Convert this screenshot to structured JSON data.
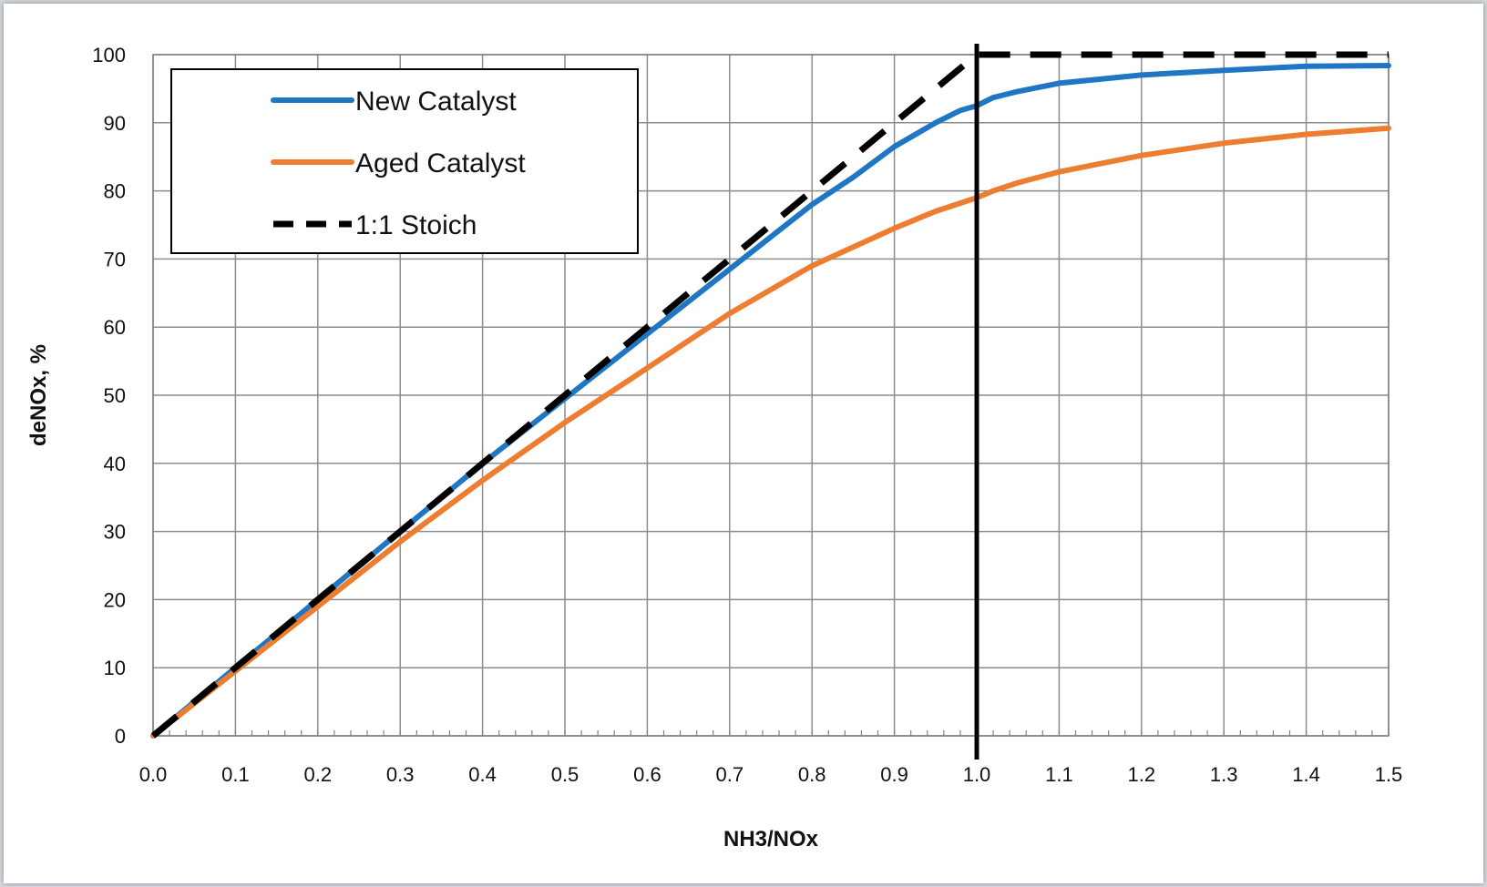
{
  "chart_data": {
    "type": "line",
    "xlabel": "NH3/NOx",
    "ylabel": "deNOx, %",
    "xlim": [
      0,
      1.5
    ],
    "ylim": [
      0,
      100
    ],
    "x_ticks": [
      "0.0",
      "0.1",
      "0.2",
      "0.3",
      "0.4",
      "0.5",
      "0.6",
      "0.7",
      "0.8",
      "0.9",
      "1.0",
      "1.1",
      "1.2",
      "1.3",
      "1.4",
      "1.5"
    ],
    "y_ticks": [
      "0",
      "10",
      "20",
      "30",
      "40",
      "50",
      "60",
      "70",
      "80",
      "90",
      "100"
    ],
    "grid": true,
    "legend_position": "top-left",
    "reference_line_x": 1.0,
    "series": [
      {
        "name": "New Catalyst",
        "color": "#1f77c4",
        "style": "solid",
        "points": [
          [
            0,
            0
          ],
          [
            0.1,
            10
          ],
          [
            0.2,
            20
          ],
          [
            0.3,
            30
          ],
          [
            0.4,
            40
          ],
          [
            0.5,
            49.5
          ],
          [
            0.6,
            59
          ],
          [
            0.7,
            68.5
          ],
          [
            0.8,
            78
          ],
          [
            0.85,
            82
          ],
          [
            0.9,
            86.5
          ],
          [
            0.95,
            90
          ],
          [
            0.98,
            91.8
          ],
          [
            1.0,
            92.5
          ],
          [
            1.02,
            93.7
          ],
          [
            1.05,
            94.6
          ],
          [
            1.1,
            95.8
          ],
          [
            1.2,
            97
          ],
          [
            1.3,
            97.7
          ],
          [
            1.4,
            98.3
          ],
          [
            1.5,
            98.4
          ]
        ]
      },
      {
        "name": "Aged Catalyst",
        "color": "#ed7d31",
        "style": "solid",
        "points": [
          [
            0,
            0
          ],
          [
            0.1,
            9.5
          ],
          [
            0.2,
            19
          ],
          [
            0.3,
            28.5
          ],
          [
            0.4,
            37.5
          ],
          [
            0.5,
            46
          ],
          [
            0.6,
            54
          ],
          [
            0.7,
            62
          ],
          [
            0.8,
            69
          ],
          [
            0.9,
            74.5
          ],
          [
            0.95,
            77
          ],
          [
            1.0,
            79
          ],
          [
            1.02,
            80
          ],
          [
            1.05,
            81.2
          ],
          [
            1.1,
            82.8
          ],
          [
            1.2,
            85.2
          ],
          [
            1.3,
            87
          ],
          [
            1.4,
            88.3
          ],
          [
            1.5,
            89.2
          ]
        ]
      },
      {
        "name": "1:1 Stoich",
        "color": "#000000",
        "style": "dashed",
        "points": [
          [
            0,
            0
          ],
          [
            1.0,
            100
          ],
          [
            1.5,
            100
          ]
        ]
      }
    ]
  }
}
